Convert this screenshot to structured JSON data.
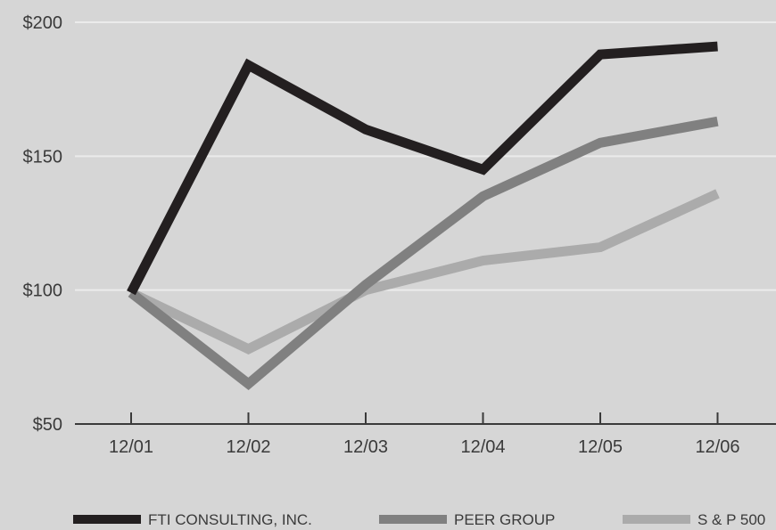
{
  "chart_data": {
    "type": "line",
    "categories": [
      "12/01",
      "12/02",
      "12/03",
      "12/04",
      "12/05",
      "12/06"
    ],
    "y_ticks": [
      "$200",
      "$150",
      "$100",
      "$50"
    ],
    "y_tick_values": [
      200,
      150,
      100,
      50
    ],
    "ylim": [
      50,
      200
    ],
    "grid": true,
    "legend_position": "bottom",
    "series": [
      {
        "name": "FTI CONSULTING, INC.",
        "values": [
          99,
          184,
          160,
          145,
          188,
          191
        ],
        "color": "#231f20"
      },
      {
        "name": "PEER GROUP",
        "values": [
          99,
          65,
          102,
          135,
          155,
          163
        ],
        "color": "#808080"
      },
      {
        "name": "S & P 500",
        "values": [
          99,
          78,
          100,
          111,
          116,
          136
        ],
        "color": "#ababab"
      }
    ]
  },
  "colors": {
    "background": "#d6d6d6",
    "grid": "#ebebeb",
    "axis": "#3a3a3a"
  }
}
